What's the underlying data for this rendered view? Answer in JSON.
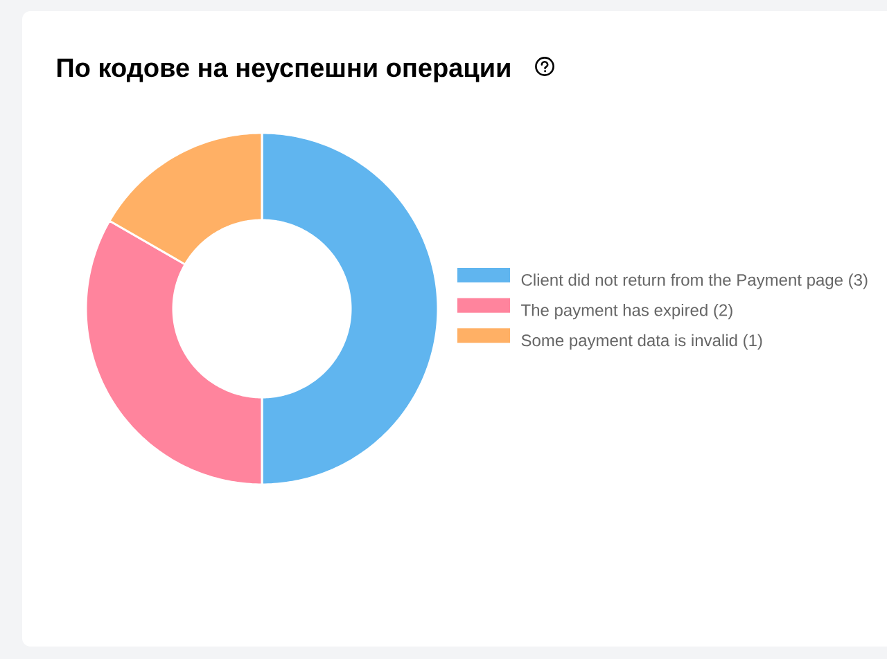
{
  "chart_data": {
    "type": "donut",
    "title": "По кодове на неуспешни операции",
    "categories": [
      "Client did not return from the Payment page (3)",
      "The payment has expired (2)",
      "Some payment data is invalid (1)"
    ],
    "values": [
      3,
      2,
      1
    ],
    "colors": [
      "#60b5ef",
      "#ff849d",
      "#ffb065"
    ],
    "legend": "right"
  }
}
